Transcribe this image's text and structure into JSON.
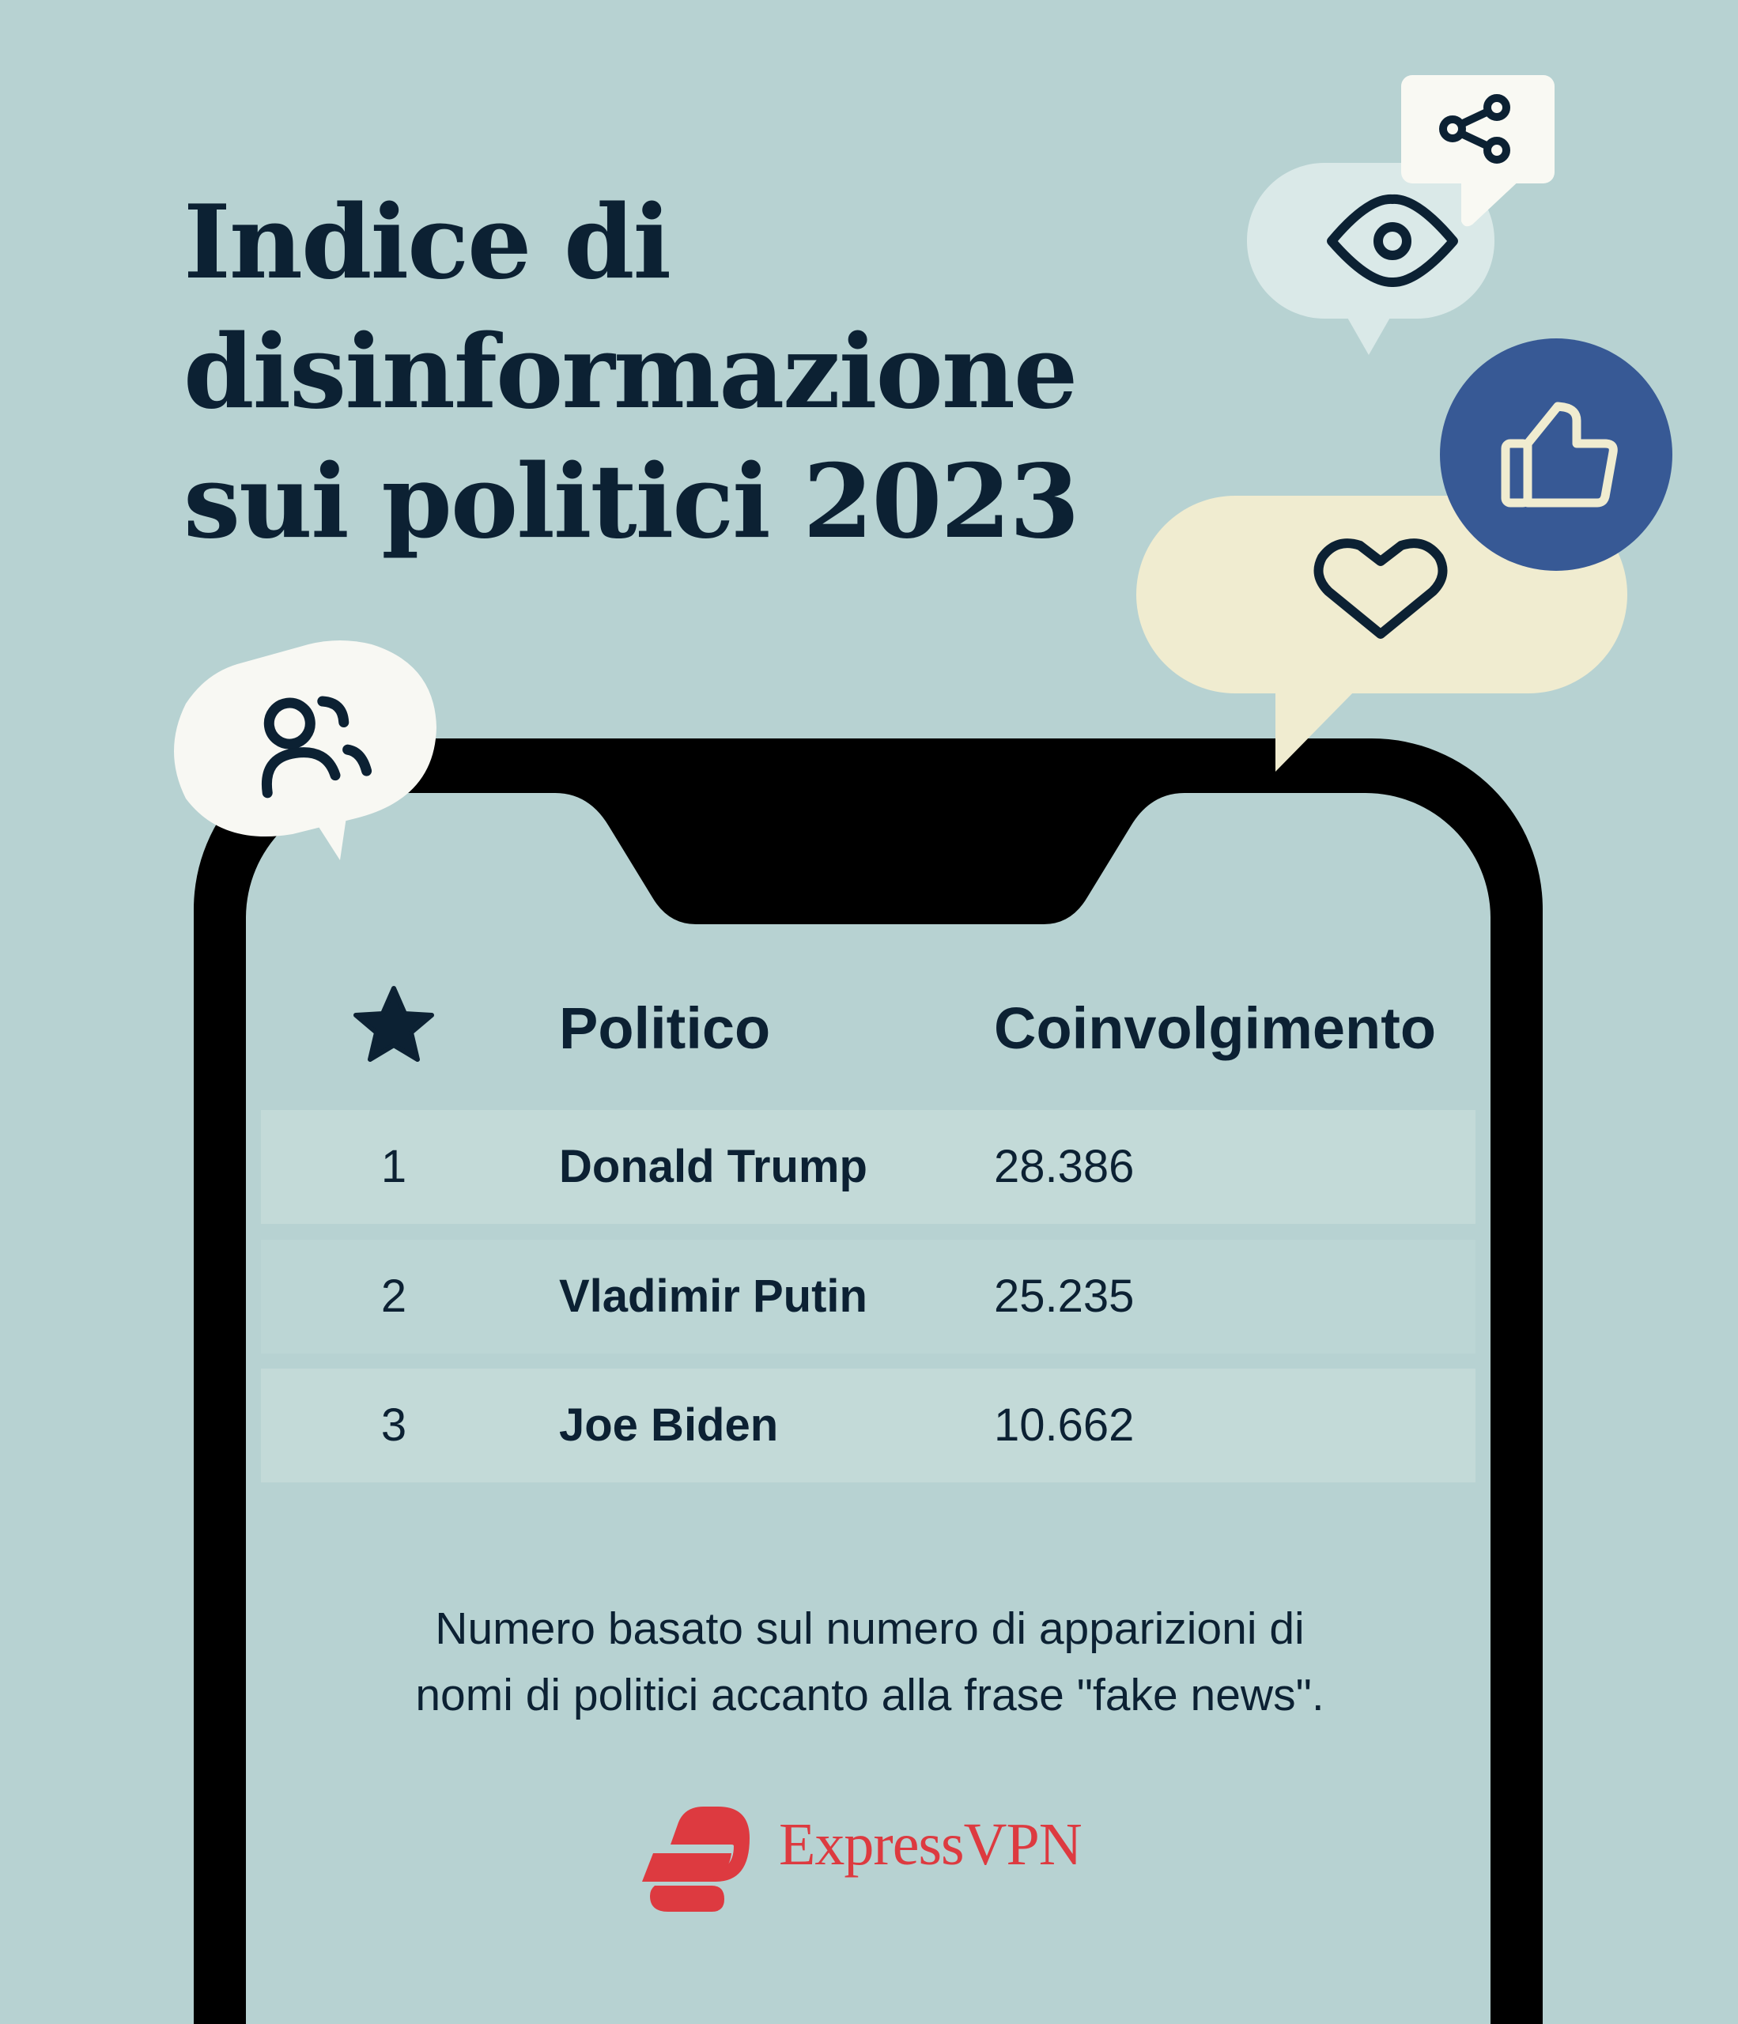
{
  "title": {
    "lines": [
      "Indice di",
      "disinformazione",
      "sui politici 2023"
    ]
  },
  "icons": [
    "share-icon",
    "eye-icon",
    "thumbs-up-icon",
    "heart-icon",
    "users-icon",
    "star-icon"
  ],
  "colors": {
    "background": "#b7d2d2",
    "text": "#0c2133",
    "brand": "#dd3a40",
    "like": "#375995",
    "heart_bubble": "#f0ecd0",
    "eye_bubble": "#dae9e8",
    "cream": "#f9f9f3"
  },
  "table": {
    "headers": {
      "rank_icon": "star-icon",
      "politician": "Politico",
      "engagement": "Coinvolgimento"
    },
    "rows": [
      {
        "rank": "1",
        "name": "Donald Trump",
        "value": "28.386"
      },
      {
        "rank": "2",
        "name": "Vladimir Putin",
        "value": "25.235"
      },
      {
        "rank": "3",
        "name": "Joe Biden",
        "value": "10.662"
      }
    ]
  },
  "footnote": {
    "lines": [
      "Numero basato sul numero di apparizioni di",
      "nomi di politici accanto alla frase \"fake news\"."
    ]
  },
  "brand": {
    "name": "ExpressVPN"
  }
}
